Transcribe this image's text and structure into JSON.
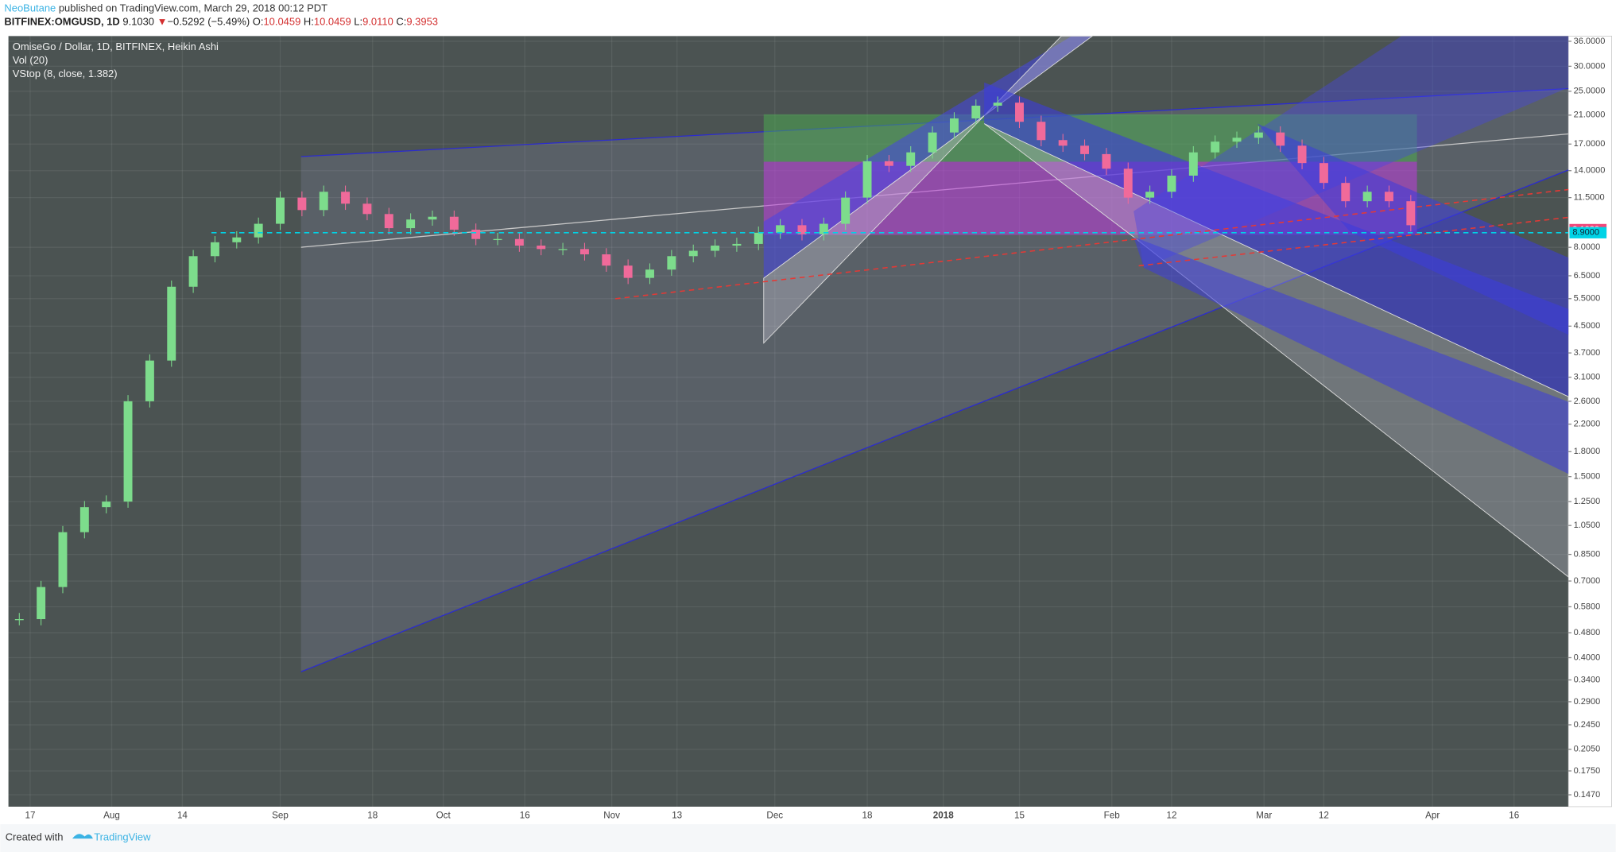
{
  "header": {
    "author": "NeoButane",
    "published": "published on TradingView.com, March 29, 2018 00:12 PDT",
    "symbol": "BITFINEX:OMGUSD, 1D",
    "last": "9.1030",
    "arrow": "▼",
    "change": "−0.5292 (−5.49%)",
    "o_label": "O:",
    "open": "10.0459",
    "h_label": "H:",
    "high": "10.0459",
    "l_label": "L:",
    "low": "9.0110",
    "c_label": "C:",
    "close": "9.3953"
  },
  "chart_data": {
    "type": "candlestick",
    "indicators": [
      "Vol (20)",
      "VStop (8, close, 1.382)"
    ],
    "x": [
      "2017-07-15",
      "2017-07-19",
      "2017-07-23",
      "2017-07-27",
      "2017-07-31",
      "2017-08-04",
      "2017-08-08",
      "2017-08-12",
      "2017-08-16",
      "2017-08-20",
      "2017-08-24",
      "2017-08-28",
      "2017-09-01",
      "2017-09-05",
      "2017-09-09",
      "2017-09-13",
      "2017-09-17",
      "2017-09-21",
      "2017-09-25",
      "2017-09-29",
      "2017-10-03",
      "2017-10-07",
      "2017-10-11",
      "2017-10-15",
      "2017-10-19",
      "2017-10-23",
      "2017-10-27",
      "2017-10-31",
      "2017-11-04",
      "2017-11-08",
      "2017-11-12",
      "2017-11-16",
      "2017-11-20",
      "2017-11-24",
      "2017-11-28",
      "2017-12-02",
      "2017-12-06",
      "2017-12-10",
      "2017-12-14",
      "2017-12-18",
      "2017-12-22",
      "2017-12-26",
      "2017-12-30",
      "2018-01-03",
      "2018-01-07",
      "2018-01-11",
      "2018-01-15",
      "2018-01-19",
      "2018-01-23",
      "2018-01-27",
      "2018-01-31",
      "2018-02-04",
      "2018-02-08",
      "2018-02-12",
      "2018-02-16",
      "2018-02-20",
      "2018-02-24",
      "2018-02-28",
      "2018-03-04",
      "2018-03-08",
      "2018-03-12",
      "2018-03-16",
      "2018-03-20",
      "2018-03-24",
      "2018-03-28"
    ],
    "series": [
      {
        "name": "OmiseGo / Dollar, 1D, BITFINEX, Heikin Ashi",
        "color": "#7ddc8c",
        "down_color": "#f06a9a",
        "values": [
          0.53,
          0.67,
          1.0,
          1.2,
          1.25,
          2.6,
          3.5,
          6.0,
          7.5,
          8.3,
          8.6,
          9.5,
          11.5,
          10.5,
          12.0,
          11.0,
          10.2,
          9.2,
          9.8,
          10.0,
          9.1,
          8.5,
          8.5,
          8.1,
          7.9,
          7.9,
          7.6,
          7.0,
          6.4,
          6.8,
          7.5,
          7.8,
          8.1,
          8.2,
          8.9,
          9.4,
          8.8,
          9.5,
          11.5,
          15.0,
          14.5,
          16.0,
          18.5,
          20.5,
          22.5,
          23.0,
          20.0,
          17.5,
          16.8,
          15.8,
          14.2,
          11.5,
          12.0,
          13.5,
          16.0,
          17.3,
          17.8,
          18.5,
          16.8,
          14.8,
          12.8,
          11.2,
          12.0,
          11.2,
          9.4
        ]
      }
    ],
    "log_scale": true,
    "ylim": [
      0.1348,
      37.4
    ],
    "yticks": [
      {
        "value": 36,
        "label": "36.0000"
      },
      {
        "value": 30,
        "label": "30.0000"
      },
      {
        "value": 25,
        "label": "25.0000"
      },
      {
        "value": 21,
        "label": "21.0000"
      },
      {
        "value": 17,
        "label": "17.0000"
      },
      {
        "value": 14,
        "label": "14.0000"
      },
      {
        "value": 11.5,
        "label": "11.5000"
      },
      {
        "value": 8,
        "label": "8.0000"
      },
      {
        "value": 6.5,
        "label": "6.5000"
      },
      {
        "value": 5.5,
        "label": "5.5000"
      },
      {
        "value": 4.5,
        "label": "4.5000"
      },
      {
        "value": 3.7,
        "label": "3.7000"
      },
      {
        "value": 3.1,
        "label": "3.1000"
      },
      {
        "value": 2.6,
        "label": "2.6000"
      },
      {
        "value": 2.2,
        "label": "2.2000"
      },
      {
        "value": 1.8,
        "label": "1.8000"
      },
      {
        "value": 1.5,
        "label": "1.5000"
      },
      {
        "value": 1.25,
        "label": "1.2500"
      },
      {
        "value": 1.05,
        "label": "1.0500"
      },
      {
        "value": 0.85,
        "label": "0.8500"
      },
      {
        "value": 0.7,
        "label": "0.7000"
      },
      {
        "value": 0.58,
        "label": "0.5800"
      },
      {
        "value": 0.48,
        "label": "0.4800"
      },
      {
        "value": 0.4,
        "label": "0.4000"
      },
      {
        "value": 0.34,
        "label": "0.3400"
      },
      {
        "value": 0.29,
        "label": "0.2900"
      },
      {
        "value": 0.245,
        "label": "0.2450"
      },
      {
        "value": 0.205,
        "label": "0.2050"
      },
      {
        "value": 0.175,
        "label": "0.1750"
      },
      {
        "value": 0.147,
        "label": "0.1470"
      }
    ],
    "xlim": [
      "2017-07-13",
      "2018-04-26"
    ],
    "xticks": [
      {
        "value": "2017-07-17",
        "label": "17"
      },
      {
        "value": "2017-08-01",
        "label": "Aug"
      },
      {
        "value": "2017-08-14",
        "label": "14"
      },
      {
        "value": "2017-09-01",
        "label": "Sep"
      },
      {
        "value": "2017-09-18",
        "label": "18"
      },
      {
        "value": "2017-10-01",
        "label": "Oct"
      },
      {
        "value": "2017-10-16",
        "label": "16"
      },
      {
        "value": "2017-11-01",
        "label": "Nov"
      },
      {
        "value": "2017-11-13",
        "label": "13"
      },
      {
        "value": "2017-12-01",
        "label": "Dec"
      },
      {
        "value": "2017-12-18",
        "label": "18"
      },
      {
        "value": "2018-01-01",
        "label": "2018"
      },
      {
        "value": "2018-01-15",
        "label": "15"
      },
      {
        "value": "2018-02-01",
        "label": "Feb"
      },
      {
        "value": "2018-02-12",
        "label": "12"
      },
      {
        "value": "2018-03-01",
        "label": "Mar"
      },
      {
        "value": "2018-03-12",
        "label": "12"
      },
      {
        "value": "2018-04-01",
        "label": "Apr"
      },
      {
        "value": "2018-04-16",
        "label": "16"
      }
    ],
    "annotations": [
      {
        "value": 9.103,
        "label": "9.1030",
        "color": "#f2487a"
      },
      {
        "value": 8.9,
        "label": "8.9000",
        "color": "#00d3e6"
      }
    ],
    "grid": true
  },
  "footer": {
    "created": "Created with",
    "brand": "TradingView"
  }
}
